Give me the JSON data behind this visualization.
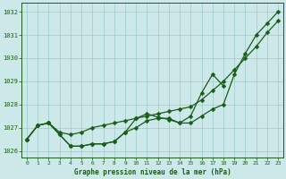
{
  "xlabel": "Graphe pression niveau de la mer (hPa)",
  "hours": [
    0,
    1,
    2,
    3,
    4,
    5,
    6,
    7,
    8,
    9,
    10,
    11,
    12,
    13,
    14,
    15,
    16,
    17,
    18,
    19,
    20,
    21,
    22,
    23
  ],
  "line1_x": [
    0,
    1,
    2,
    3,
    4,
    5,
    6,
    7,
    8,
    9,
    10,
    11,
    12,
    13,
    14,
    15,
    16,
    17,
    18,
    19,
    20,
    21,
    22,
    23
  ],
  "line1_y": [
    1026.5,
    1027.1,
    1027.2,
    1026.8,
    1026.7,
    1026.8,
    1027.0,
    1027.1,
    1027.2,
    1027.3,
    1027.4,
    1027.5,
    1027.6,
    1027.7,
    1027.8,
    1027.9,
    1028.2,
    1028.6,
    1029.0,
    1029.5,
    1030.0,
    1030.5,
    1031.1,
    1031.6
  ],
  "line2_x": [
    0,
    1,
    2,
    3,
    4,
    5,
    6,
    7,
    8,
    9,
    10,
    11,
    12,
    13,
    14,
    15,
    16,
    17,
    18,
    19,
    20,
    21,
    22,
    23
  ],
  "line2_y": [
    1026.5,
    1027.1,
    1027.2,
    1026.7,
    1026.2,
    1026.2,
    1026.3,
    1026.3,
    1026.4,
    1026.8,
    1027.0,
    1027.3,
    1027.4,
    1027.4,
    1027.2,
    1027.2,
    1027.5,
    1027.8,
    1028.0,
    1029.3,
    1030.2,
    1031.0,
    1031.5,
    1032.0
  ],
  "line3_x": [
    0,
    1,
    2,
    3,
    4,
    5,
    6,
    7,
    8,
    9,
    10,
    11,
    12,
    13,
    14,
    15,
    16,
    17,
    18
  ],
  "line3_y": [
    1026.5,
    1027.1,
    1027.2,
    1026.7,
    1026.2,
    1026.2,
    1026.3,
    1026.3,
    1026.4,
    1026.8,
    1027.4,
    1027.6,
    1027.45,
    1027.35,
    1027.2,
    1027.5,
    1028.5,
    1029.3,
    1028.8
  ],
  "line_color": "#1a5c1a",
  "bg_color": "#cce8e8",
  "grid_color": "#99cccc",
  "ylim_min": 1025.7,
  "ylim_max": 1032.4,
  "marker_size": 2.5,
  "line_width": 0.9
}
